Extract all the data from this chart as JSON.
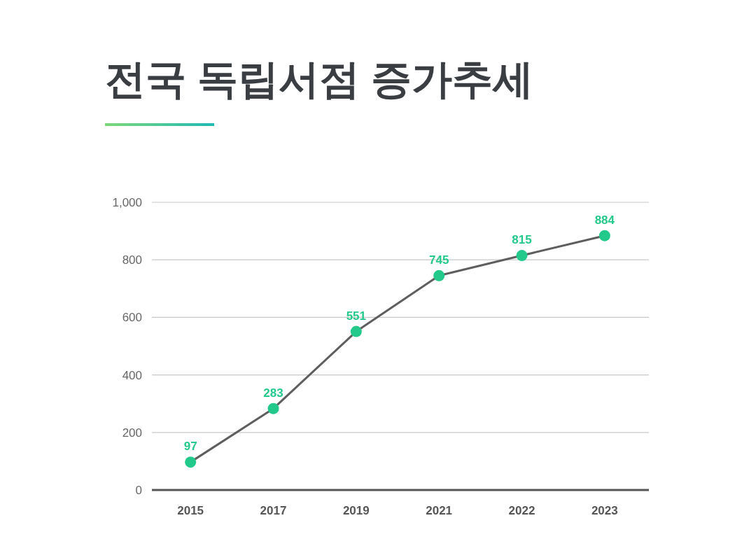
{
  "chart_data": {
    "type": "line",
    "title": "전국 독립서점 증가추세",
    "categories": [
      "2015",
      "2017",
      "2019",
      "2021",
      "2022",
      "2023"
    ],
    "values": [
      97,
      283,
      551,
      745,
      815,
      884
    ],
    "color": "#5e5e5e",
    "colors": [
      "#22c98a",
      "#22c98a",
      "#22c98a",
      "#22c98a",
      "#22c98a",
      "#22c98a"
    ],
    "marker": "circle",
    "data_labels": true,
    "grid": "y",
    "ylim": [
      0,
      1000
    ],
    "yticks": [
      0,
      200,
      400,
      600,
      800,
      {
        "value": 1000,
        "label": "1,000"
      }
    ]
  }
}
